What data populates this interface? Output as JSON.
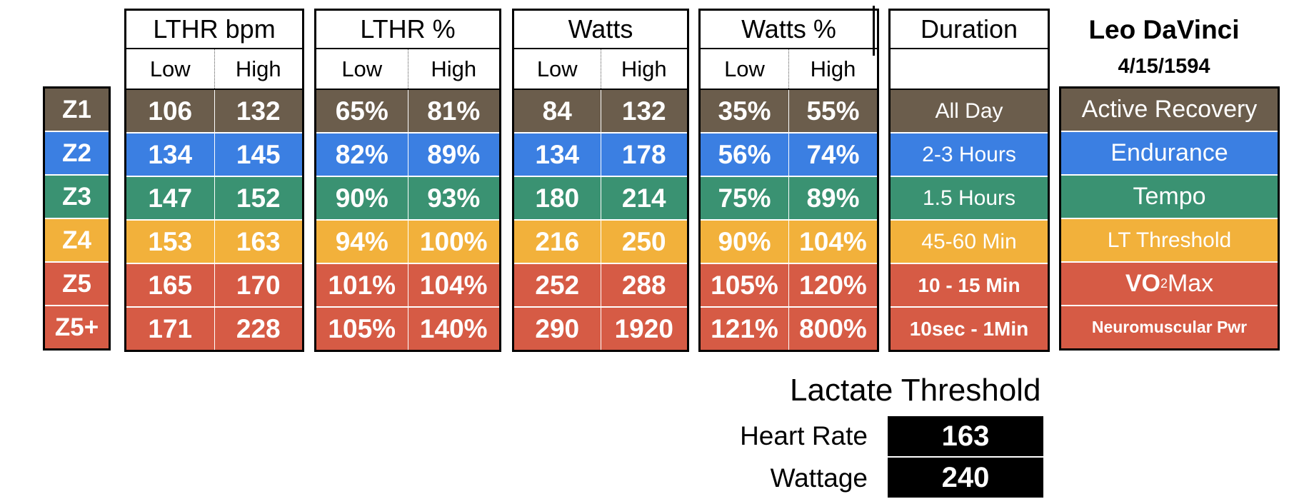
{
  "zones": [
    "Z1",
    "Z2",
    "Z3",
    "Z4",
    "Z5",
    "Z5+"
  ],
  "sub_low": "Low",
  "sub_high": "High",
  "lthr_bpm": {
    "title": "LTHR bpm",
    "low": [
      "106",
      "134",
      "147",
      "153",
      "165",
      "171"
    ],
    "high": [
      "132",
      "145",
      "152",
      "163",
      "170",
      "228"
    ]
  },
  "lthr_pct": {
    "title": "LTHR %",
    "low": [
      "65%",
      "82%",
      "90%",
      "94%",
      "101%",
      "105%"
    ],
    "high": [
      "81%",
      "89%",
      "93%",
      "100%",
      "104%",
      "140%"
    ]
  },
  "watts": {
    "title": "Watts",
    "low": [
      "84",
      "134",
      "180",
      "216",
      "252",
      "290"
    ],
    "high": [
      "132",
      "178",
      "214",
      "250",
      "288",
      "1920"
    ]
  },
  "watts_pct": {
    "title": "Watts %",
    "low": [
      "35%",
      "56%",
      "75%",
      "90%",
      "105%",
      "121%"
    ],
    "high": [
      "55%",
      "74%",
      "89%",
      "104%",
      "120%",
      "800%"
    ]
  },
  "duration": {
    "title": "Duration",
    "values": [
      "All Day",
      "2-3 Hours",
      "1.5 Hours",
      "45-60 Min",
      "10 - 15 Min",
      "10sec - 1Min"
    ]
  },
  "athlete": {
    "name": "Leo DaVinci",
    "date": "4/15/1594"
  },
  "descriptions": [
    "Active Recovery",
    "Endurance",
    "Tempo",
    "LT Threshold",
    "VO",
    "2",
    " Max",
    "Neuromuscular Pwr"
  ],
  "lactate": {
    "title": "Lactate Threshold",
    "hr_label": "Heart Rate",
    "hr_value": "163",
    "watt_label": "Wattage",
    "watt_value": "240"
  },
  "colors": {
    "z1": "#6b5d4c",
    "z2": "#3b7fe2",
    "z3": "#3a9272",
    "z4": "#f2b13b",
    "z5": "#d65b45"
  }
}
